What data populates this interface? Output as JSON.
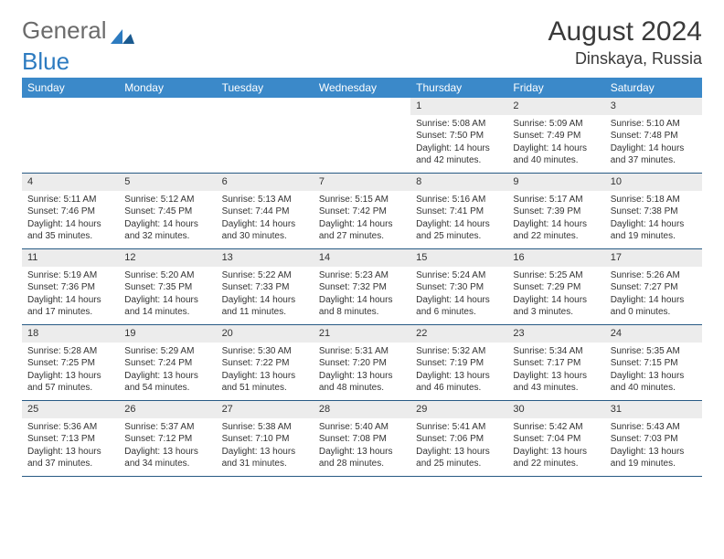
{
  "brand": {
    "name_a": "General",
    "name_b": "Blue"
  },
  "title": "August 2024",
  "location": "Dinskaya, Russia",
  "colors": {
    "header_bg": "#3b89c9",
    "header_text": "#ffffff",
    "rule": "#275a84",
    "daynum_bg": "#ececec",
    "text": "#333333",
    "background": "#ffffff"
  },
  "day_names": [
    "Sunday",
    "Monday",
    "Tuesday",
    "Wednesday",
    "Thursday",
    "Friday",
    "Saturday"
  ],
  "weeks": [
    [
      {
        "n": "",
        "sunrise": "",
        "sunset": "",
        "daylight": ""
      },
      {
        "n": "",
        "sunrise": "",
        "sunset": "",
        "daylight": ""
      },
      {
        "n": "",
        "sunrise": "",
        "sunset": "",
        "daylight": ""
      },
      {
        "n": "",
        "sunrise": "",
        "sunset": "",
        "daylight": ""
      },
      {
        "n": "1",
        "sunrise": "Sunrise: 5:08 AM",
        "sunset": "Sunset: 7:50 PM",
        "daylight": "Daylight: 14 hours and 42 minutes."
      },
      {
        "n": "2",
        "sunrise": "Sunrise: 5:09 AM",
        "sunset": "Sunset: 7:49 PM",
        "daylight": "Daylight: 14 hours and 40 minutes."
      },
      {
        "n": "3",
        "sunrise": "Sunrise: 5:10 AM",
        "sunset": "Sunset: 7:48 PM",
        "daylight": "Daylight: 14 hours and 37 minutes."
      }
    ],
    [
      {
        "n": "4",
        "sunrise": "Sunrise: 5:11 AM",
        "sunset": "Sunset: 7:46 PM",
        "daylight": "Daylight: 14 hours and 35 minutes."
      },
      {
        "n": "5",
        "sunrise": "Sunrise: 5:12 AM",
        "sunset": "Sunset: 7:45 PM",
        "daylight": "Daylight: 14 hours and 32 minutes."
      },
      {
        "n": "6",
        "sunrise": "Sunrise: 5:13 AM",
        "sunset": "Sunset: 7:44 PM",
        "daylight": "Daylight: 14 hours and 30 minutes."
      },
      {
        "n": "7",
        "sunrise": "Sunrise: 5:15 AM",
        "sunset": "Sunset: 7:42 PM",
        "daylight": "Daylight: 14 hours and 27 minutes."
      },
      {
        "n": "8",
        "sunrise": "Sunrise: 5:16 AM",
        "sunset": "Sunset: 7:41 PM",
        "daylight": "Daylight: 14 hours and 25 minutes."
      },
      {
        "n": "9",
        "sunrise": "Sunrise: 5:17 AM",
        "sunset": "Sunset: 7:39 PM",
        "daylight": "Daylight: 14 hours and 22 minutes."
      },
      {
        "n": "10",
        "sunrise": "Sunrise: 5:18 AM",
        "sunset": "Sunset: 7:38 PM",
        "daylight": "Daylight: 14 hours and 19 minutes."
      }
    ],
    [
      {
        "n": "11",
        "sunrise": "Sunrise: 5:19 AM",
        "sunset": "Sunset: 7:36 PM",
        "daylight": "Daylight: 14 hours and 17 minutes."
      },
      {
        "n": "12",
        "sunrise": "Sunrise: 5:20 AM",
        "sunset": "Sunset: 7:35 PM",
        "daylight": "Daylight: 14 hours and 14 minutes."
      },
      {
        "n": "13",
        "sunrise": "Sunrise: 5:22 AM",
        "sunset": "Sunset: 7:33 PM",
        "daylight": "Daylight: 14 hours and 11 minutes."
      },
      {
        "n": "14",
        "sunrise": "Sunrise: 5:23 AM",
        "sunset": "Sunset: 7:32 PM",
        "daylight": "Daylight: 14 hours and 8 minutes."
      },
      {
        "n": "15",
        "sunrise": "Sunrise: 5:24 AM",
        "sunset": "Sunset: 7:30 PM",
        "daylight": "Daylight: 14 hours and 6 minutes."
      },
      {
        "n": "16",
        "sunrise": "Sunrise: 5:25 AM",
        "sunset": "Sunset: 7:29 PM",
        "daylight": "Daylight: 14 hours and 3 minutes."
      },
      {
        "n": "17",
        "sunrise": "Sunrise: 5:26 AM",
        "sunset": "Sunset: 7:27 PM",
        "daylight": "Daylight: 14 hours and 0 minutes."
      }
    ],
    [
      {
        "n": "18",
        "sunrise": "Sunrise: 5:28 AM",
        "sunset": "Sunset: 7:25 PM",
        "daylight": "Daylight: 13 hours and 57 minutes."
      },
      {
        "n": "19",
        "sunrise": "Sunrise: 5:29 AM",
        "sunset": "Sunset: 7:24 PM",
        "daylight": "Daylight: 13 hours and 54 minutes."
      },
      {
        "n": "20",
        "sunrise": "Sunrise: 5:30 AM",
        "sunset": "Sunset: 7:22 PM",
        "daylight": "Daylight: 13 hours and 51 minutes."
      },
      {
        "n": "21",
        "sunrise": "Sunrise: 5:31 AM",
        "sunset": "Sunset: 7:20 PM",
        "daylight": "Daylight: 13 hours and 48 minutes."
      },
      {
        "n": "22",
        "sunrise": "Sunrise: 5:32 AM",
        "sunset": "Sunset: 7:19 PM",
        "daylight": "Daylight: 13 hours and 46 minutes."
      },
      {
        "n": "23",
        "sunrise": "Sunrise: 5:34 AM",
        "sunset": "Sunset: 7:17 PM",
        "daylight": "Daylight: 13 hours and 43 minutes."
      },
      {
        "n": "24",
        "sunrise": "Sunrise: 5:35 AM",
        "sunset": "Sunset: 7:15 PM",
        "daylight": "Daylight: 13 hours and 40 minutes."
      }
    ],
    [
      {
        "n": "25",
        "sunrise": "Sunrise: 5:36 AM",
        "sunset": "Sunset: 7:13 PM",
        "daylight": "Daylight: 13 hours and 37 minutes."
      },
      {
        "n": "26",
        "sunrise": "Sunrise: 5:37 AM",
        "sunset": "Sunset: 7:12 PM",
        "daylight": "Daylight: 13 hours and 34 minutes."
      },
      {
        "n": "27",
        "sunrise": "Sunrise: 5:38 AM",
        "sunset": "Sunset: 7:10 PM",
        "daylight": "Daylight: 13 hours and 31 minutes."
      },
      {
        "n": "28",
        "sunrise": "Sunrise: 5:40 AM",
        "sunset": "Sunset: 7:08 PM",
        "daylight": "Daylight: 13 hours and 28 minutes."
      },
      {
        "n": "29",
        "sunrise": "Sunrise: 5:41 AM",
        "sunset": "Sunset: 7:06 PM",
        "daylight": "Daylight: 13 hours and 25 minutes."
      },
      {
        "n": "30",
        "sunrise": "Sunrise: 5:42 AM",
        "sunset": "Sunset: 7:04 PM",
        "daylight": "Daylight: 13 hours and 22 minutes."
      },
      {
        "n": "31",
        "sunrise": "Sunrise: 5:43 AM",
        "sunset": "Sunset: 7:03 PM",
        "daylight": "Daylight: 13 hours and 19 minutes."
      }
    ]
  ]
}
